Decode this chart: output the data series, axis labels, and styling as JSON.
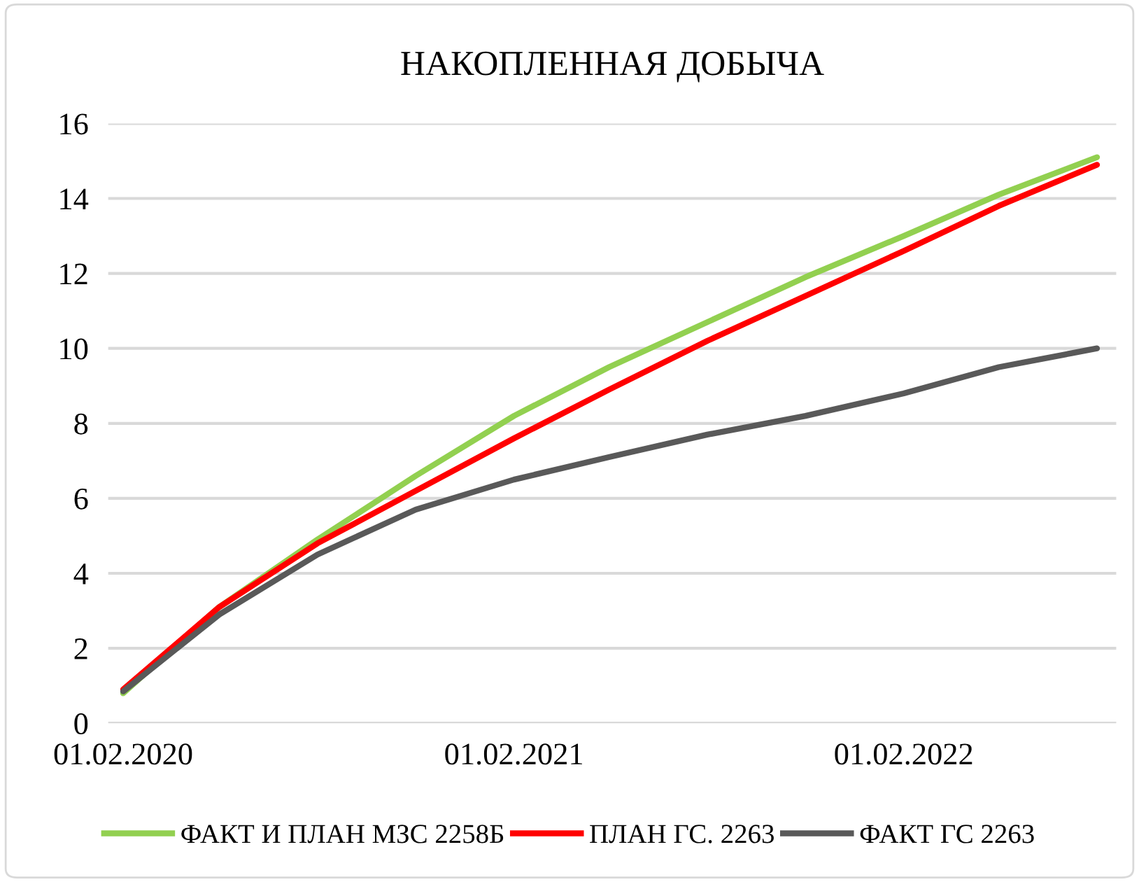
{
  "chart_data": {
    "type": "line",
    "title": "НАКОПЛЕННАЯ ДОБЫЧА",
    "x": [
      "2020-02-01",
      "2020-05-01",
      "2020-08-01",
      "2020-11-01",
      "2021-02-01",
      "2021-05-01",
      "2021-08-01",
      "2021-11-01",
      "2022-02-01",
      "2022-05-01",
      "2022-08-01"
    ],
    "series": [
      {
        "name": "ФАКТ И ПЛАН МЗС 2258Б",
        "color": "#92d050",
        "values": [
          0.8,
          3.1,
          4.9,
          6.6,
          8.2,
          9.5,
          10.7,
          11.9,
          13.0,
          14.1,
          15.1
        ]
      },
      {
        "name": "ПЛАН ГС. 2263",
        "color": "#ff0000",
        "values": [
          0.9,
          3.1,
          4.8,
          6.2,
          7.6,
          8.9,
          10.2,
          11.4,
          12.6,
          13.8,
          14.9
        ]
      },
      {
        "name": "ФАКТ ГС 2263",
        "color": "#595959",
        "values": [
          0.85,
          2.9,
          4.5,
          5.7,
          6.5,
          7.1,
          7.7,
          8.2,
          8.8,
          9.5,
          10.0
        ]
      }
    ],
    "xlim": [
      "2020-01-18",
      "2022-08-19"
    ],
    "xticks": [
      {
        "value": "2020-02-01",
        "label": "01.02.2020"
      },
      {
        "value": "2021-02-01",
        "label": "01.02.2021"
      },
      {
        "value": "2022-02-01",
        "label": "01.02.2022"
      }
    ],
    "ylim": [
      0,
      16
    ],
    "yticks": [
      0,
      2,
      4,
      6,
      8,
      10,
      12,
      14,
      16
    ],
    "grid": "y",
    "legend": "bottom",
    "marker": "none",
    "line_style": "solid"
  }
}
